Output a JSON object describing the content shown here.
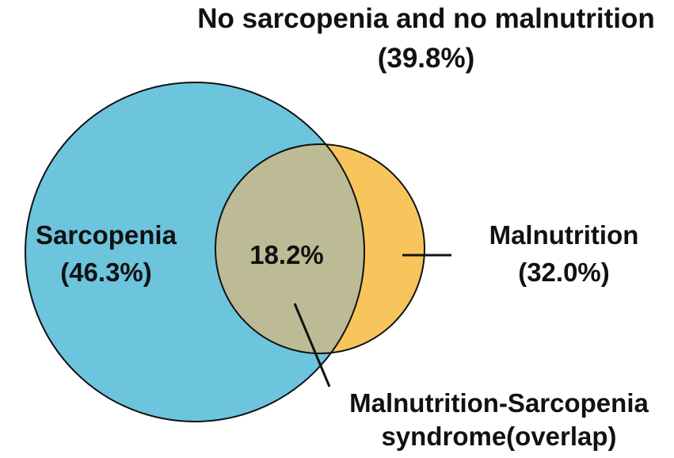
{
  "title": {
    "line1": "No sarcopenia and no malnutrition",
    "line2": "(39.8%)"
  },
  "sets": {
    "sarcopenia": {
      "name": "Sarcopenia",
      "percent_label": "(46.3%)",
      "percent": 46.3,
      "color": "#6cc4dd"
    },
    "malnutrition": {
      "name": "Malnutrition",
      "percent_label": "(32.0%)",
      "percent": 32.0,
      "color": "#f8c55c"
    }
  },
  "overlap": {
    "value_label": "18.2%",
    "percent": 18.2,
    "color": "#bdbb96",
    "callout_line1": "Malnutrition-Sarcopenia",
    "callout_line2": "syndrome(overlap)"
  },
  "outline_color": "#111111"
}
